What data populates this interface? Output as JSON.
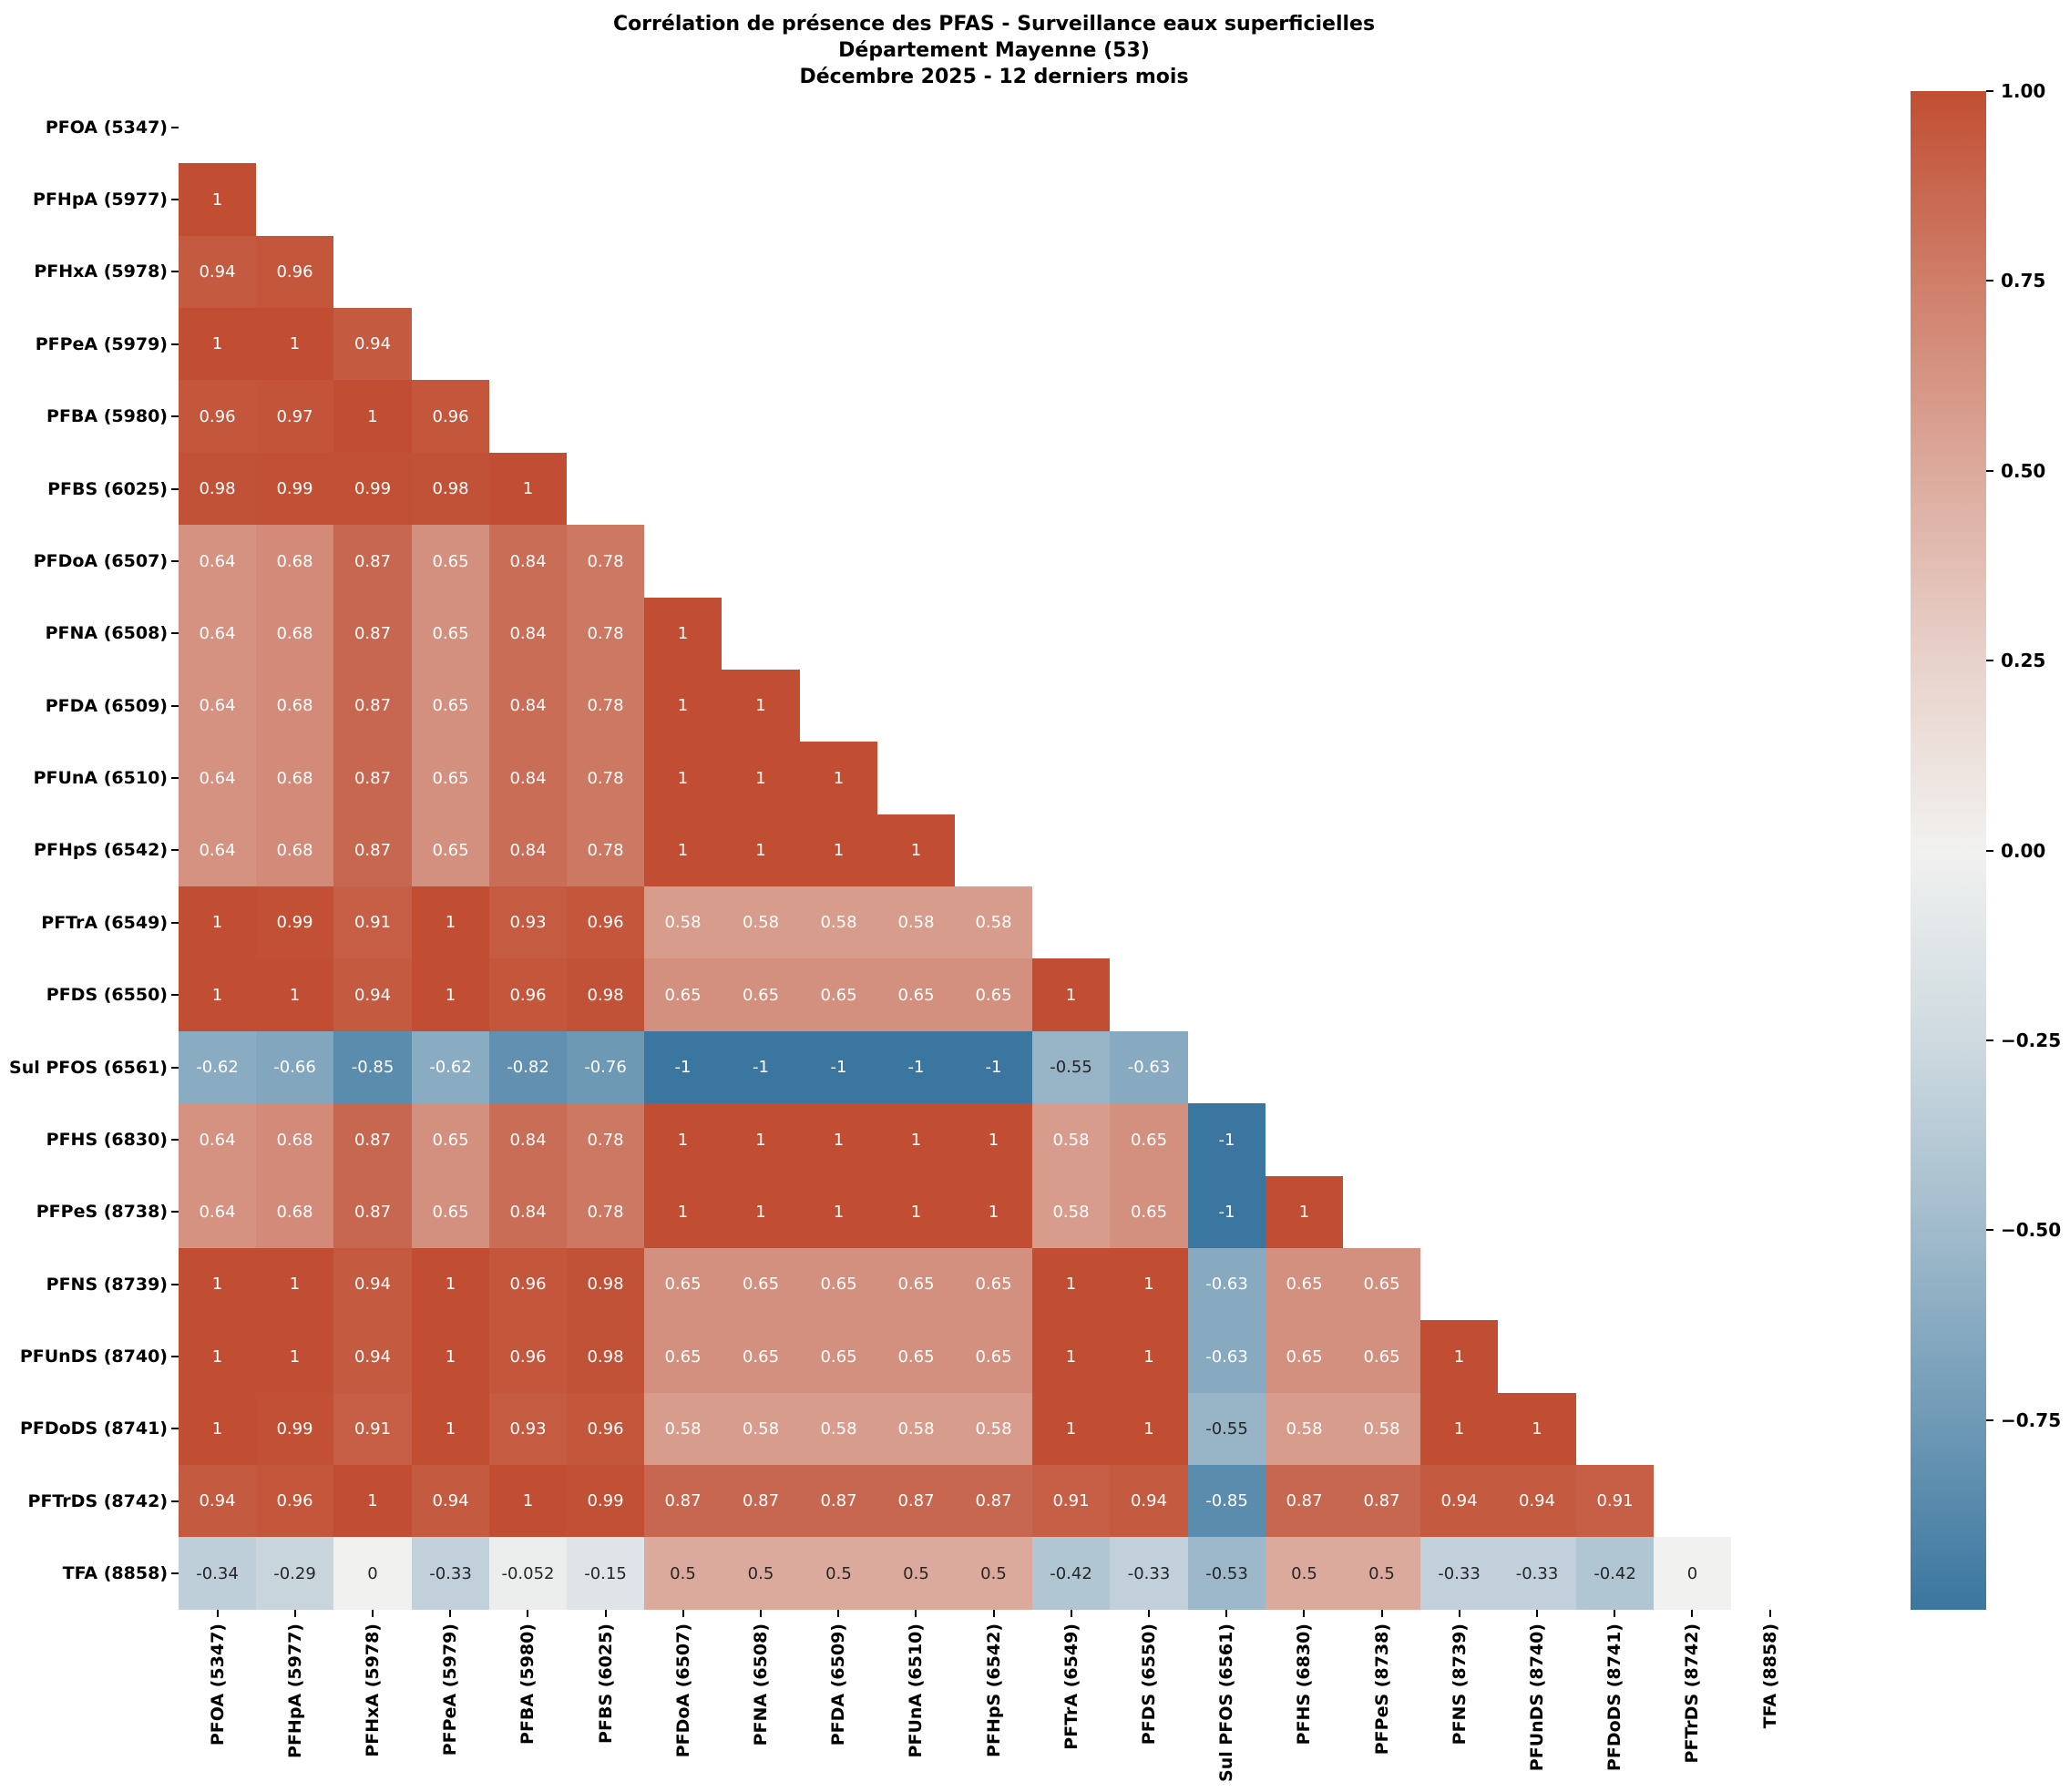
{
  "title": {
    "line1": "Corrélation de présence des PFAS - Surveillance eaux superficielles",
    "line2": "Département Mayenne (53)",
    "line3": "Décembre 2025 - 12 derniers mois"
  },
  "chart_data": {
    "type": "heatmap",
    "subtype": "correlation-matrix-lower-triangle",
    "mask": "diagonal-and-upper-triangle-hidden",
    "value_range": [
      -1,
      1
    ],
    "labels": [
      "PFOA (5347)",
      "PFHpA (5977)",
      "PFHxA (5978)",
      "PFPeA (5979)",
      "PFBA (5980)",
      "PFBS (6025)",
      "PFDoA (6507)",
      "PFNA (6508)",
      "PFDA (6509)",
      "PFUnA (6510)",
      "PFHpS (6542)",
      "PFTrA (6549)",
      "PFDS (6550)",
      "Sul PFOS (6561)",
      "PFHS (6830)",
      "PFPeS (8738)",
      "PFNS (8739)",
      "PFUnDS (8740)",
      "PFDoDS (8741)",
      "PFTrDS (8742)",
      "TFA (8858)"
    ],
    "rows": [
      {
        "label": "PFOA (5347)",
        "values": []
      },
      {
        "label": "PFHpA (5977)",
        "values": [
          1
        ]
      },
      {
        "label": "PFHxA (5978)",
        "values": [
          0.94,
          0.96
        ]
      },
      {
        "label": "PFPeA (5979)",
        "values": [
          1,
          1,
          0.94
        ]
      },
      {
        "label": "PFBA (5980)",
        "values": [
          0.96,
          0.97,
          1,
          0.96
        ]
      },
      {
        "label": "PFBS (6025)",
        "values": [
          0.98,
          0.99,
          0.99,
          0.98,
          1
        ]
      },
      {
        "label": "PFDoA (6507)",
        "values": [
          0.64,
          0.68,
          0.87,
          0.65,
          0.84,
          0.78
        ]
      },
      {
        "label": "PFNA (6508)",
        "values": [
          0.64,
          0.68,
          0.87,
          0.65,
          0.84,
          0.78,
          1
        ]
      },
      {
        "label": "PFDA (6509)",
        "values": [
          0.64,
          0.68,
          0.87,
          0.65,
          0.84,
          0.78,
          1,
          1
        ]
      },
      {
        "label": "PFUnA (6510)",
        "values": [
          0.64,
          0.68,
          0.87,
          0.65,
          0.84,
          0.78,
          1,
          1,
          1
        ]
      },
      {
        "label": "PFHpS (6542)",
        "values": [
          0.64,
          0.68,
          0.87,
          0.65,
          0.84,
          0.78,
          1,
          1,
          1,
          1
        ]
      },
      {
        "label": "PFTrA (6549)",
        "values": [
          1,
          0.99,
          0.91,
          1,
          0.93,
          0.96,
          0.58,
          0.58,
          0.58,
          0.58,
          0.58
        ]
      },
      {
        "label": "PFDS (6550)",
        "values": [
          1,
          1,
          0.94,
          1,
          0.96,
          0.98,
          0.65,
          0.65,
          0.65,
          0.65,
          0.65,
          1
        ]
      },
      {
        "label": "Sul PFOS (6561)",
        "values": [
          -0.62,
          -0.66,
          -0.85,
          -0.62,
          -0.82,
          -0.76,
          -1,
          -1,
          -1,
          -1,
          -1,
          -0.55,
          -0.63
        ]
      },
      {
        "label": "PFHS (6830)",
        "values": [
          0.64,
          0.68,
          0.87,
          0.65,
          0.84,
          0.78,
          1,
          1,
          1,
          1,
          1,
          0.58,
          0.65,
          -1
        ]
      },
      {
        "label": "PFPeS (8738)",
        "values": [
          0.64,
          0.68,
          0.87,
          0.65,
          0.84,
          0.78,
          1,
          1,
          1,
          1,
          1,
          0.58,
          0.65,
          -1,
          1
        ]
      },
      {
        "label": "PFNS (8739)",
        "values": [
          1,
          1,
          0.94,
          1,
          0.96,
          0.98,
          0.65,
          0.65,
          0.65,
          0.65,
          0.65,
          1,
          1,
          -0.63,
          0.65,
          0.65
        ]
      },
      {
        "label": "PFUnDS (8740)",
        "values": [
          1,
          1,
          0.94,
          1,
          0.96,
          0.98,
          0.65,
          0.65,
          0.65,
          0.65,
          0.65,
          1,
          1,
          -0.63,
          0.65,
          0.65,
          1
        ]
      },
      {
        "label": "PFDoDS (8741)",
        "values": [
          1,
          0.99,
          0.91,
          1,
          0.93,
          0.96,
          0.58,
          0.58,
          0.58,
          0.58,
          0.58,
          1,
          1,
          -0.55,
          0.58,
          0.58,
          1,
          1
        ]
      },
      {
        "label": "PFTrDS (8742)",
        "values": [
          0.94,
          0.96,
          1,
          0.94,
          1,
          0.99,
          0.87,
          0.87,
          0.87,
          0.87,
          0.87,
          0.91,
          0.94,
          -0.85,
          0.87,
          0.87,
          0.94,
          0.94,
          0.91
        ]
      },
      {
        "label": "TFA (8858)",
        "values": [
          -0.34,
          -0.29,
          0,
          -0.33,
          -0.052,
          -0.15,
          0.5,
          0.5,
          0.5,
          0.5,
          0.5,
          -0.42,
          -0.33,
          -0.53,
          0.5,
          0.5,
          -0.33,
          -0.33,
          -0.42,
          0
        ]
      }
    ],
    "colorbar": {
      "tick_labels": [
        "1.00",
        "0.75",
        "0.50",
        "0.25",
        "0.00",
        "−0.25",
        "−0.50",
        "−0.75"
      ],
      "tick_values": [
        1,
        0.75,
        0.5,
        0.25,
        0,
        -0.25,
        -0.5,
        -0.75
      ],
      "max": 1,
      "min": -1
    },
    "palette": {
      "positive_end": "#c14e32",
      "midpoint": "#f1f1ef",
      "negative_end": "#3a769f",
      "annot_dark_text": "#262626",
      "annot_light_text": "#ffffff"
    },
    "legend_position": "right",
    "grid": "off"
  }
}
